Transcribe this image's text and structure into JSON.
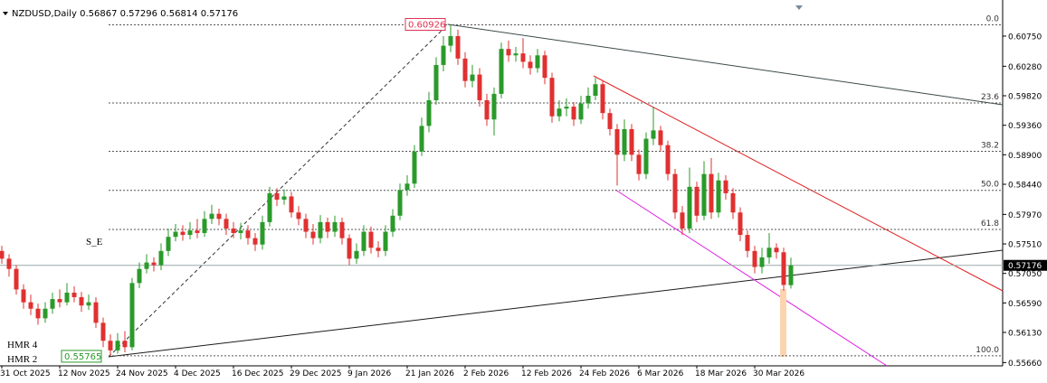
{
  "chart_data": {
    "type": "candlestick",
    "symbol": "NZDUSD,Daily",
    "up_color": "#2a9a2a",
    "down_color": "#e03030",
    "ylim": [
      0.55609,
      0.61313
    ],
    "yticks": [
      {
        "value": 0.6075,
        "label": "0.60750"
      },
      {
        "value": 0.6028,
        "label": "0.60280"
      },
      {
        "value": 0.5982,
        "label": "0.59820"
      },
      {
        "value": 0.5936,
        "label": "0.59360"
      },
      {
        "value": 0.589,
        "label": "0.58900"
      },
      {
        "value": 0.5844,
        "label": "0.58440"
      },
      {
        "value": 0.5797,
        "label": "0.57970"
      },
      {
        "value": 0.5751,
        "label": "0.57510"
      },
      {
        "value": 0.5705,
        "label": "0.57050"
      },
      {
        "value": 0.5659,
        "label": "0.56590"
      },
      {
        "value": 0.5613,
        "label": "0.56130"
      },
      {
        "value": 0.5566,
        "label": "0.55660"
      }
    ],
    "categories": [
      "31 Oct 2025",
      null,
      null,
      null,
      null,
      null,
      null,
      null,
      "12 Nov 2025",
      null,
      null,
      null,
      null,
      null,
      null,
      null,
      "24 Nov 2025",
      null,
      null,
      null,
      null,
      null,
      null,
      null,
      "4 Dec 2025",
      null,
      null,
      null,
      null,
      null,
      null,
      null,
      "16 Dec 2025",
      null,
      null,
      null,
      null,
      null,
      null,
      null,
      "29 Dec 2025",
      null,
      null,
      null,
      null,
      null,
      null,
      null,
      "9 Jan 2026",
      null,
      null,
      null,
      null,
      null,
      null,
      null,
      "21 Jan 2026",
      null,
      null,
      null,
      null,
      null,
      null,
      null,
      "2 Feb 2026",
      null,
      null,
      null,
      null,
      null,
      null,
      null,
      "12 Feb 2026",
      null,
      null,
      null,
      null,
      null,
      null,
      null,
      "24 Feb 2026",
      null,
      null,
      null,
      null,
      null,
      null,
      null,
      "6 Mar 2026",
      null,
      null,
      null,
      null,
      null,
      null,
      null,
      "18 Mar 2026",
      null,
      null,
      null,
      null,
      null,
      null,
      null,
      "30 Mar 2026",
      null,
      null,
      null,
      null,
      null
    ],
    "open": [
      0.574,
      0.5728,
      0.5712,
      0.568,
      0.566,
      0.565,
      0.5635,
      0.565,
      0.5665,
      0.566,
      0.5675,
      0.5668,
      0.5655,
      0.566,
      0.5628,
      0.56,
      0.5585,
      0.56,
      0.559,
      0.569,
      0.5712,
      0.5722,
      0.5718,
      0.574,
      0.5762,
      0.577,
      0.5765,
      0.5772,
      0.5768,
      0.579,
      0.5798,
      0.579,
      0.5775,
      0.5768,
      0.5772,
      0.576,
      0.575,
      0.5785,
      0.583,
      0.582,
      0.5825,
      0.58,
      0.579,
      0.577,
      0.576,
      0.5785,
      0.577,
      0.5785,
      0.576,
      0.5728,
      0.574,
      0.577,
      0.5745,
      0.574,
      0.577,
      0.5795,
      0.5835,
      0.5845,
      0.5895,
      0.5935,
      0.5975,
      0.603,
      0.606,
      0.6075,
      0.604,
      0.6005,
      0.6015,
      0.5975,
      0.5945,
      0.5985,
      0.6055,
      0.6045,
      0.6048,
      0.6035,
      0.6025,
      0.6045,
      0.601,
      0.595,
      0.5962,
      0.5965,
      0.5945,
      0.597,
      0.5982,
      0.6,
      0.5955,
      0.593,
      0.589,
      0.593,
      0.589,
      0.586,
      0.5915,
      0.5928,
      0.5905,
      0.586,
      0.58,
      0.5775,
      0.584,
      0.5795,
      0.586,
      0.58,
      0.585,
      0.583,
      0.58,
      0.5765,
      0.574,
      0.5715,
      0.573,
      0.5745,
      0.5738,
      0.56867
    ],
    "high": [
      0.5748,
      0.5735,
      0.5718,
      0.5688,
      0.5672,
      0.5658,
      0.566,
      0.5675,
      0.568,
      0.569,
      0.5685,
      0.5676,
      0.5672,
      0.5668,
      0.5636,
      0.561,
      0.5612,
      0.5615,
      0.5698,
      0.5722,
      0.5735,
      0.573,
      0.5752,
      0.5775,
      0.5782,
      0.578,
      0.5785,
      0.579,
      0.5802,
      0.5812,
      0.5806,
      0.5798,
      0.5785,
      0.5784,
      0.578,
      0.5768,
      0.5795,
      0.584,
      0.5838,
      0.5836,
      0.5832,
      0.581,
      0.5798,
      0.5782,
      0.5796,
      0.5792,
      0.5795,
      0.5792,
      0.5766,
      0.5752,
      0.578,
      0.5778,
      0.5755,
      0.578,
      0.5805,
      0.5845,
      0.5858,
      0.5905,
      0.5948,
      0.5988,
      0.6042,
      0.6075,
      0.60926,
      0.6085,
      0.605,
      0.603,
      0.6025,
      0.5985,
      0.5995,
      0.6065,
      0.6068,
      0.6058,
      0.6072,
      0.6045,
      0.6055,
      0.6052,
      0.6018,
      0.5975,
      0.5978,
      0.5972,
      0.5982,
      0.5995,
      0.601,
      0.6005,
      0.5962,
      0.5938,
      0.5945,
      0.5938,
      0.5898,
      0.5925,
      0.5965,
      0.5935,
      0.5912,
      0.5868,
      0.581,
      0.587,
      0.5848,
      0.588,
      0.5885,
      0.5862,
      0.5858,
      0.5838,
      0.5808,
      0.5772,
      0.5748,
      0.5745,
      0.5768,
      0.5752,
      0.5745,
      0.57296
    ],
    "low": [
      0.572,
      0.57,
      0.5672,
      0.565,
      0.564,
      0.5625,
      0.5628,
      0.5642,
      0.5652,
      0.5655,
      0.566,
      0.5645,
      0.5648,
      0.562,
      0.559,
      0.55765,
      0.558,
      0.5582,
      0.5585,
      0.5682,
      0.5705,
      0.5708,
      0.571,
      0.5732,
      0.5755,
      0.5756,
      0.5758,
      0.576,
      0.5762,
      0.5782,
      0.578,
      0.5765,
      0.576,
      0.5758,
      0.575,
      0.574,
      0.5742,
      0.5778,
      0.581,
      0.5812,
      0.5792,
      0.578,
      0.576,
      0.575,
      0.5752,
      0.576,
      0.5762,
      0.575,
      0.5718,
      0.572,
      0.5732,
      0.5736,
      0.573,
      0.5732,
      0.5762,
      0.5788,
      0.5826,
      0.5838,
      0.5888,
      0.5925,
      0.5968,
      0.602,
      0.605,
      0.603,
      0.5995,
      0.5995,
      0.5965,
      0.5935,
      0.592,
      0.5978,
      0.6035,
      0.6035,
      0.6025,
      0.6015,
      0.6018,
      0.6,
      0.594,
      0.5942,
      0.595,
      0.5935,
      0.5938,
      0.5962,
      0.5975,
      0.5945,
      0.592,
      0.5842,
      0.588,
      0.588,
      0.585,
      0.5852,
      0.5905,
      0.5895,
      0.585,
      0.579,
      0.5765,
      0.5768,
      0.5785,
      0.5788,
      0.579,
      0.5792,
      0.582,
      0.579,
      0.5755,
      0.573,
      0.5705,
      0.5705,
      0.572,
      0.5728,
      0.5678,
      0.56814
    ],
    "close": [
      0.5728,
      0.5712,
      0.568,
      0.566,
      0.565,
      0.5635,
      0.565,
      0.5665,
      0.566,
      0.5675,
      0.5668,
      0.5655,
      0.566,
      0.5628,
      0.56,
      0.5585,
      0.56,
      0.559,
      0.569,
      0.5712,
      0.5722,
      0.5718,
      0.574,
      0.5762,
      0.577,
      0.5765,
      0.5772,
      0.5768,
      0.579,
      0.5798,
      0.579,
      0.5775,
      0.5768,
      0.5772,
      0.576,
      0.575,
      0.5785,
      0.583,
      0.582,
      0.5825,
      0.58,
      0.579,
      0.577,
      0.576,
      0.5785,
      0.577,
      0.5785,
      0.576,
      0.5728,
      0.574,
      0.577,
      0.5745,
      0.574,
      0.577,
      0.5795,
      0.5835,
      0.5845,
      0.5895,
      0.5935,
      0.5975,
      0.603,
      0.606,
      0.6075,
      0.604,
      0.6005,
      0.6015,
      0.5975,
      0.5945,
      0.5985,
      0.6055,
      0.6045,
      0.6048,
      0.6035,
      0.6025,
      0.6045,
      0.601,
      0.595,
      0.5962,
      0.5965,
      0.5945,
      0.597,
      0.5982,
      0.6,
      0.5955,
      0.593,
      0.589,
      0.593,
      0.589,
      0.586,
      0.5915,
      0.5928,
      0.5905,
      0.586,
      0.58,
      0.5775,
      0.584,
      0.5795,
      0.586,
      0.58,
      0.585,
      0.583,
      0.58,
      0.5765,
      0.574,
      0.5715,
      0.573,
      0.5745,
      0.5738,
      0.5687,
      0.57176
    ],
    "fib_levels": [
      {
        "value": 0,
        "label": "0.0"
      },
      23.6,
      38.2,
      {
        "value": 50,
        "label": "50.0"
      },
      61.8,
      {
        "value": 100,
        "label": "100.0"
      }
    ],
    "annotations": [
      {
        "text": "S_E",
        "color": "#e03030"
      },
      {
        "text": "HMR 4",
        "color": "#2323c8"
      },
      {
        "text": "HMR 2",
        "color": "#2323c8"
      }
    ]
  }
}
